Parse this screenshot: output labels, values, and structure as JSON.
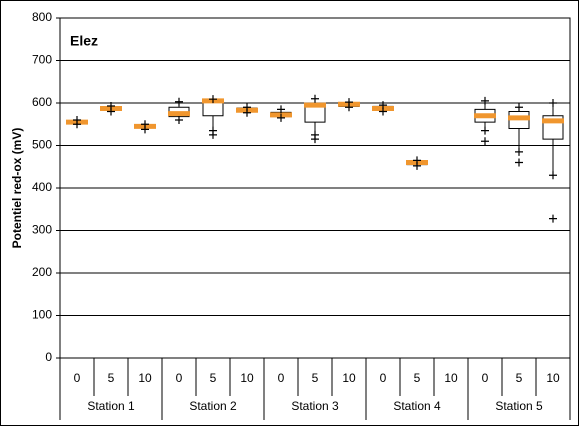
{
  "chart_data": {
    "type": "box",
    "title": "Elez",
    "ylabel": "Potentiel red-ox (mV)",
    "ylim": [
      0,
      800
    ],
    "yticks": [
      0,
      100,
      200,
      300,
      400,
      500,
      600,
      700,
      800
    ],
    "grid": true,
    "color": "#000000",
    "median_color": "#f0962e",
    "groups": [
      {
        "name": "Station 1",
        "categories": [
          "0",
          "5",
          "10"
        ],
        "data": [
          {
            "min": 550,
            "q1": 552,
            "median": 555,
            "q3": 558,
            "max": 560,
            "outliers": []
          },
          {
            "min": 580,
            "q1": 584,
            "median": 587,
            "q3": 590,
            "max": 593,
            "outliers": []
          },
          {
            "min": 538,
            "q1": 542,
            "median": 545,
            "q3": 547,
            "max": 550,
            "outliers": []
          }
        ]
      },
      {
        "name": "Station 2",
        "categories": [
          "0",
          "5",
          "10"
        ],
        "data": [
          {
            "min": 560,
            "q1": 568,
            "median": 575,
            "q3": 590,
            "max": 603,
            "outliers": []
          },
          {
            "min": 535,
            "q1": 570,
            "median": 605,
            "q3": 607,
            "max": 609,
            "outliers": [
              525
            ]
          },
          {
            "min": 577,
            "q1": 580,
            "median": 583,
            "q3": 588,
            "max": 590,
            "outliers": []
          }
        ]
      },
      {
        "name": "Station 3",
        "categories": [
          "0",
          "5",
          "10"
        ],
        "data": [
          {
            "min": 565,
            "q1": 568,
            "median": 572,
            "q3": 578,
            "max": 585,
            "outliers": []
          },
          {
            "min": 525,
            "q1": 555,
            "median": 595,
            "q3": 600,
            "max": 610,
            "outliers": [
              515
            ]
          },
          {
            "min": 590,
            "q1": 592,
            "median": 597,
            "q3": 600,
            "max": 602,
            "outliers": []
          }
        ]
      },
      {
        "name": "Station 4",
        "categories": [
          "0",
          "5",
          "10"
        ],
        "data": [
          {
            "min": 580,
            "q1": 583,
            "median": 587,
            "q3": 592,
            "max": 595,
            "outliers": []
          },
          {
            "min": 452,
            "q1": 455,
            "median": 460,
            "q3": 462,
            "max": 465,
            "outliers": []
          },
          null
        ]
      },
      {
        "name": "Station 5",
        "categories": [
          "0",
          "5",
          "10"
        ],
        "data": [
          {
            "min": 535,
            "q1": 555,
            "median": 570,
            "q3": 585,
            "max": 605,
            "outliers": [
              510
            ]
          },
          {
            "min": 485,
            "q1": 540,
            "median": 565,
            "q3": 580,
            "max": 590,
            "outliers": [
              460
            ]
          },
          {
            "min": 430,
            "q1": 515,
            "median": 558,
            "q3": 570,
            "max": 600,
            "outliers": [
              328
            ]
          }
        ]
      }
    ]
  }
}
